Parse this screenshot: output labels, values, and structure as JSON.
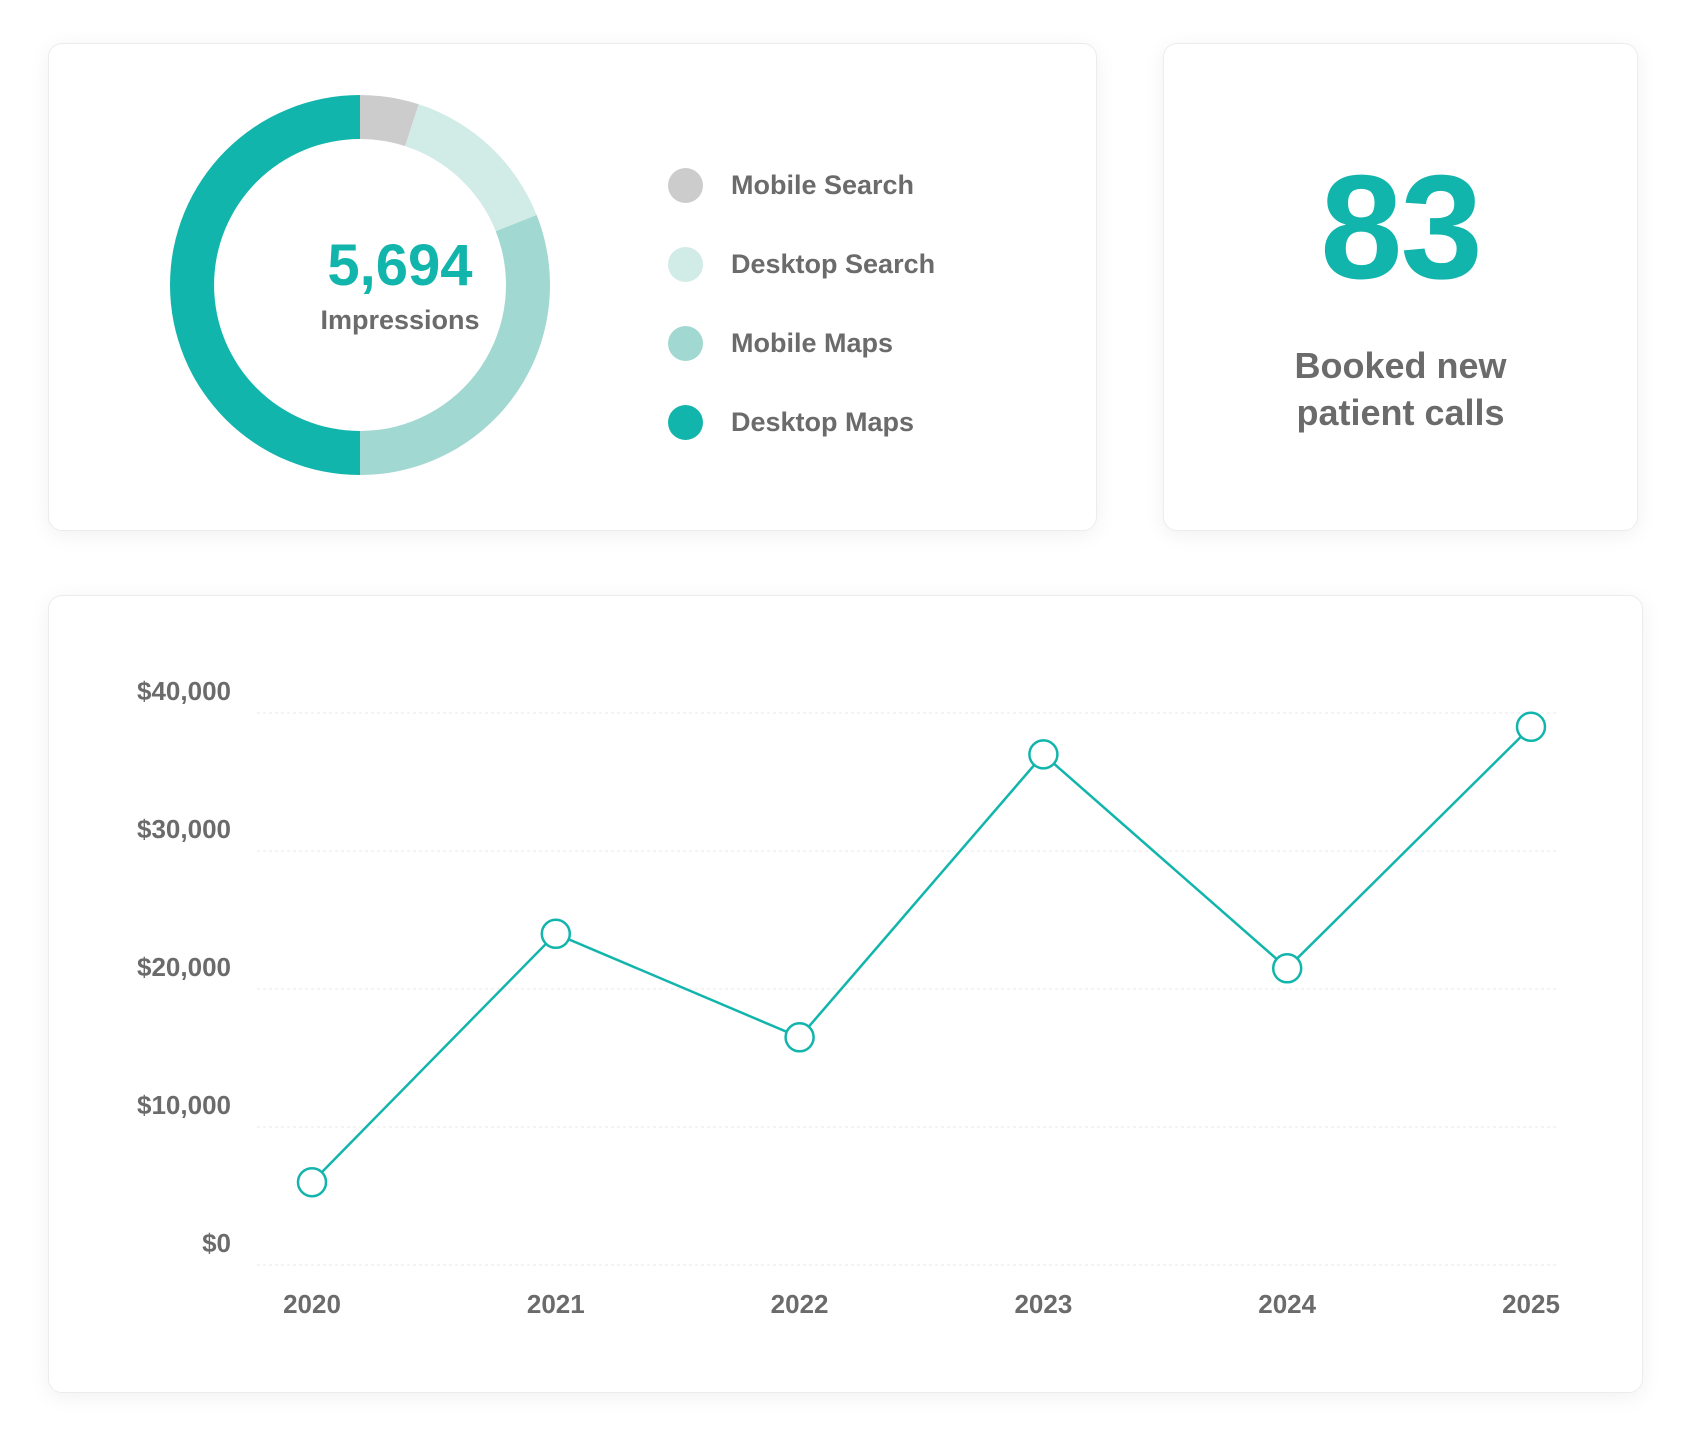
{
  "donut": {
    "total_value": "5,694",
    "caption": "Impressions"
  },
  "stat": {
    "value": "83",
    "label_line1": "Booked new",
    "label_line2": "patient calls"
  },
  "chart_data": [
    {
      "type": "pie",
      "title": "",
      "legend_placement": "right",
      "slices": [
        {
          "label": "Mobile Search",
          "value": 5,
          "color": "#cccccc"
        },
        {
          "label": "Desktop Search",
          "value": 14,
          "color": "#d1ebe7"
        },
        {
          "label": "Mobile Maps",
          "value": 31,
          "color": "#a1d8d1"
        },
        {
          "label": "Desktop Maps",
          "value": 50,
          "color": "#12b5ac"
        }
      ]
    },
    {
      "type": "line",
      "title": "",
      "xlabel": "",
      "ylabel": "",
      "categories": [
        "2020",
        "2021",
        "2022",
        "2023",
        "2024",
        "2025"
      ],
      "values": [
        6000,
        24000,
        16500,
        37000,
        21500,
        39000
      ],
      "ylim": [
        0,
        40000
      ],
      "yticks": [
        {
          "value": 0,
          "label": "$0"
        },
        {
          "value": 10000,
          "label": "$10,000"
        },
        {
          "value": 20000,
          "label": "$20,000"
        },
        {
          "value": 30000,
          "label": "$30,000"
        },
        {
          "value": 40000,
          "label": "$40,000"
        }
      ],
      "grid": true,
      "color": "#12b5ac"
    }
  ]
}
